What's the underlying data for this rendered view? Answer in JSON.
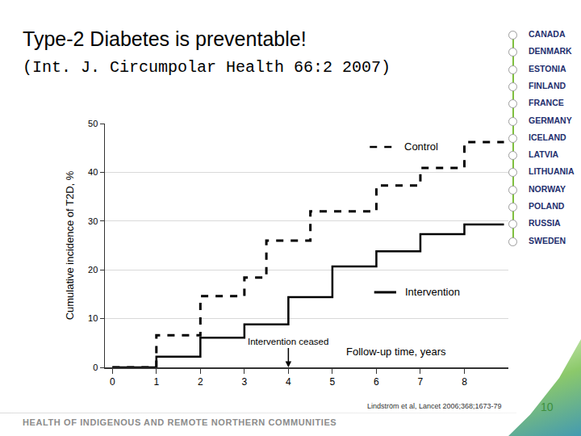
{
  "chart_data": {
    "type": "step",
    "title": "Type-2 Diabetes is preventable!",
    "subtitle": "(Int. J. Circumpolar Health 66:2 2007)",
    "x_label": "Follow-up time, years",
    "y_label": "Cumulative incidence of T2D, %",
    "series": [
      {
        "name": "Control",
        "color": "#000000",
        "line_style": "dashed",
        "x": [
          0,
          1,
          2,
          3,
          3.5,
          4.5,
          6,
          7,
          8,
          8.9
        ],
        "values": [
          0,
          6.6,
          14.6,
          18.4,
          26,
          32,
          37.3,
          40.9,
          46.2,
          46.2
        ]
      },
      {
        "name": "Intervention",
        "color": "#000000",
        "line_style": "solid",
        "x": [
          0,
          1,
          2,
          3,
          4,
          5,
          6,
          7,
          8,
          8.9
        ],
        "values": [
          0,
          2.2,
          6.1,
          8.8,
          14.4,
          20.7,
          23.8,
          27.3,
          29.3,
          29.3
        ]
      }
    ],
    "xlim": [
      -0.17,
      9
    ],
    "xticks": [
      0,
      1,
      2,
      3,
      4,
      5,
      6,
      7,
      8
    ],
    "ylim": [
      0,
      50
    ],
    "yticks": [
      0,
      10,
      20,
      30,
      40,
      50
    ],
    "grid": "y",
    "legend": "inline",
    "annotations": [
      {
        "text": "Intervention ceased",
        "x": 4,
        "y": 0
      }
    ],
    "source": "Lindström et al, Lancet 2006;368;1673-79"
  },
  "slide": {
    "countries": [
      "CANADA",
      "DENMARK",
      "ESTONIA",
      "FINLAND",
      "FRANCE",
      "GERMANY",
      "ICELAND",
      "LATVIA",
      "LITHUANIA",
      "NORWAY",
      "POLAND",
      "RUSSIA",
      "SWEDEN"
    ],
    "footer": "HEALTH OF INDIGENOUS AND REMOTE NORTHERN COMMUNITIES",
    "page_number": "10"
  }
}
